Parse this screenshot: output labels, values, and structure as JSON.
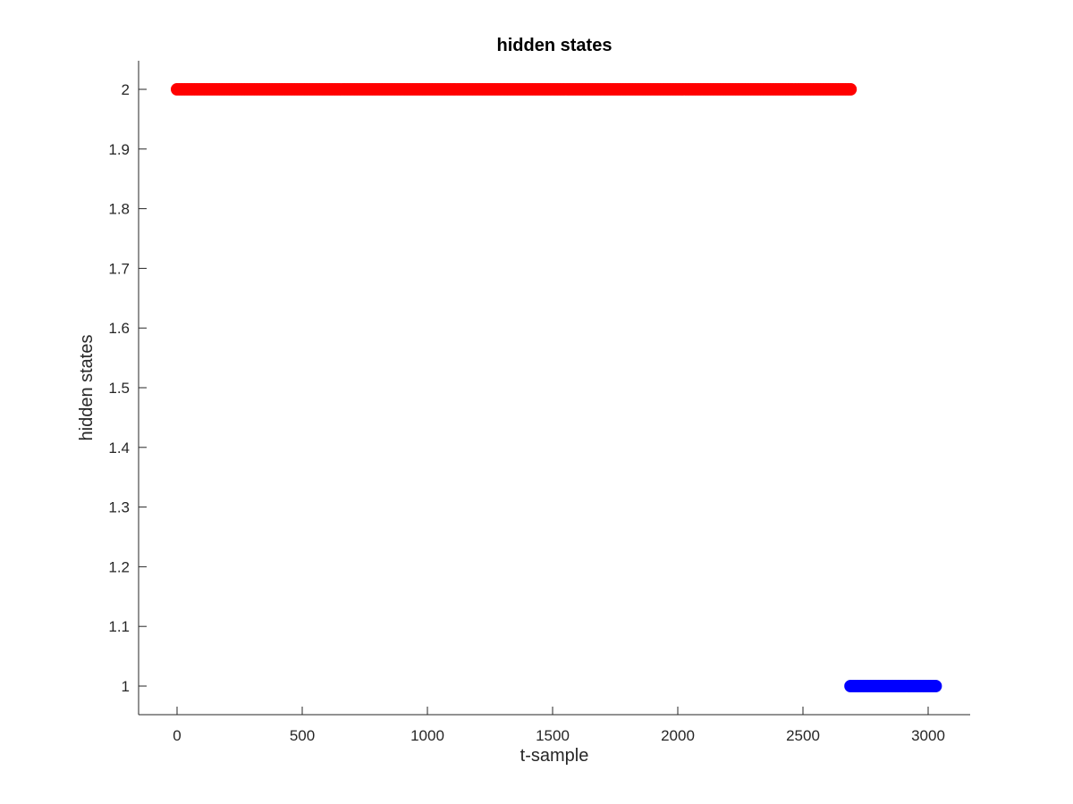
{
  "chart_data": {
    "type": "scatter",
    "title": "hidden states",
    "xlabel": "t-sample",
    "ylabel": "hidden states",
    "xlim": [
      -150,
      3150
    ],
    "ylim": [
      0.95,
      2.05
    ],
    "xticks": [
      0,
      500,
      1000,
      1500,
      2000,
      2500,
      3000
    ],
    "yticks": [
      1,
      1.1,
      1.2,
      1.3,
      1.4,
      1.5,
      1.6,
      1.7,
      1.8,
      1.9,
      2
    ],
    "grid": false,
    "series": [
      {
        "color": "#ff0000",
        "y": 2,
        "x_start": 0,
        "x_end": 2690
      },
      {
        "color": "#0000ff",
        "y": 1,
        "x_start": 2690,
        "x_end": 3030
      }
    ]
  }
}
